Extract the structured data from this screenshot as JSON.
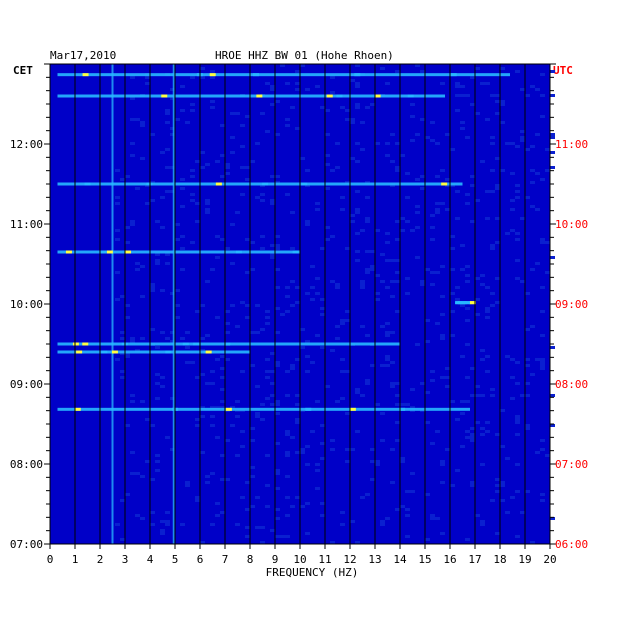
{
  "header": {
    "date": "Mar17,2010",
    "station": "HROE HHZ BW 01 (Hohe Rhoen)"
  },
  "chart_data": {
    "type": "heatmap",
    "title": "HROE HHZ BW 01 (Hohe Rhoen)",
    "date": "Mar17,2010",
    "xlabel": "FREQUENCY (HZ)",
    "left_axis_label": "CET",
    "right_axis_label": "UTC",
    "xlim": [
      0,
      20
    ],
    "x_ticks": [
      "0",
      "1",
      "2",
      "3",
      "4",
      "5",
      "6",
      "7",
      "8",
      "9",
      "10",
      "11",
      "12",
      "13",
      "14",
      "15",
      "16",
      "17",
      "18",
      "19",
      "20"
    ],
    "ylim_cet": [
      "07:00",
      "13:00"
    ],
    "y_ticks_cet": [
      "07:00",
      "08:00",
      "09:00",
      "10:00",
      "11:00",
      "12:00"
    ],
    "y_ticks_utc": [
      "06:00",
      "07:00",
      "08:00",
      "09:00",
      "10:00",
      "11:00"
    ],
    "colors": {
      "background": "#0000c8",
      "low": "#0a1fd0",
      "mid": "#28b8ff",
      "high": "#ffff40",
      "peak": "#ff3000",
      "utc_text": "#ff0000",
      "text": "#000000"
    },
    "features": {
      "microseism_band_hz": [
        0.2,
        1.1
      ],
      "persistent_lines_hz": [
        2.5,
        4.95
      ],
      "transient_events": [
        {
          "time_cet": "12:52",
          "f_start": 0.3,
          "f_end": 18.4
        },
        {
          "time_cet": "12:36",
          "f_start": 0.3,
          "f_end": 15.8
        },
        {
          "time_cet": "11:30",
          "f_start": 0.3,
          "f_end": 16.5
        },
        {
          "time_cet": "10:39",
          "f_start": 0.3,
          "f_end": 10.0
        },
        {
          "time_cet": "10:01",
          "f_start": 16.2,
          "f_end": 16.8
        },
        {
          "time_cet": "09:30",
          "f_start": 0.3,
          "f_end": 14.0
        },
        {
          "time_cet": "09:24",
          "f_start": 0.3,
          "f_end": 8.0
        },
        {
          "time_cet": "08:41",
          "f_start": 0.3,
          "f_end": 16.8
        }
      ]
    }
  }
}
